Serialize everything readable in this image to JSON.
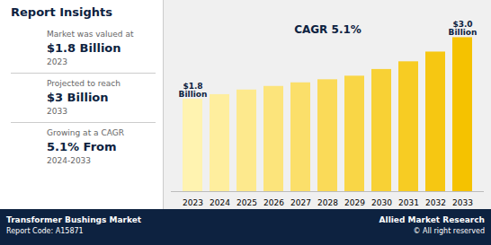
{
  "chart_data": {
    "type": "bar",
    "title": "Report Insights",
    "categories": [
      "2023",
      "2024",
      "2025",
      "2026",
      "2027",
      "2028",
      "2029",
      "2030",
      "2031",
      "2032",
      "2033"
    ],
    "values": [
      1.8,
      1.89,
      1.98,
      2.05,
      2.12,
      2.18,
      2.25,
      2.38,
      2.53,
      2.72,
      3.0
    ],
    "colors": [
      "#fff3b0",
      "#feee9e",
      "#fde98d",
      "#fce47b",
      "#fbdf6a",
      "#fada58",
      "#f9d646",
      "#f8d135",
      "#f7cc23",
      "#f6c712",
      "#f5c200"
    ],
    "ylim": [
      0,
      3.55
    ],
    "grid": false,
    "tick_labels": "x",
    "annotations": [
      {
        "text": "$1.8\nBillion",
        "x": "2023",
        "y": 1.8
      },
      {
        "text": "$3.0\nBillion",
        "x": "2033",
        "y": 3.0
      },
      {
        "text": "CAGR 5.1%"
      }
    ],
    "insights": [
      {
        "label": "Market was valued at",
        "value": "$1.8 Billion",
        "year": "2023"
      },
      {
        "label": "Projected to reach",
        "value": "$3 Billion",
        "year": "2033"
      },
      {
        "label": "Growing at a CAGR",
        "value": "5.1% From",
        "year": "2024-2033"
      }
    ],
    "footer": {
      "left": [
        "Transformer Bushings Market",
        "Report Code: A15871"
      ],
      "right": [
        "Allied Market Research",
        "© All right reserved"
      ]
    }
  }
}
